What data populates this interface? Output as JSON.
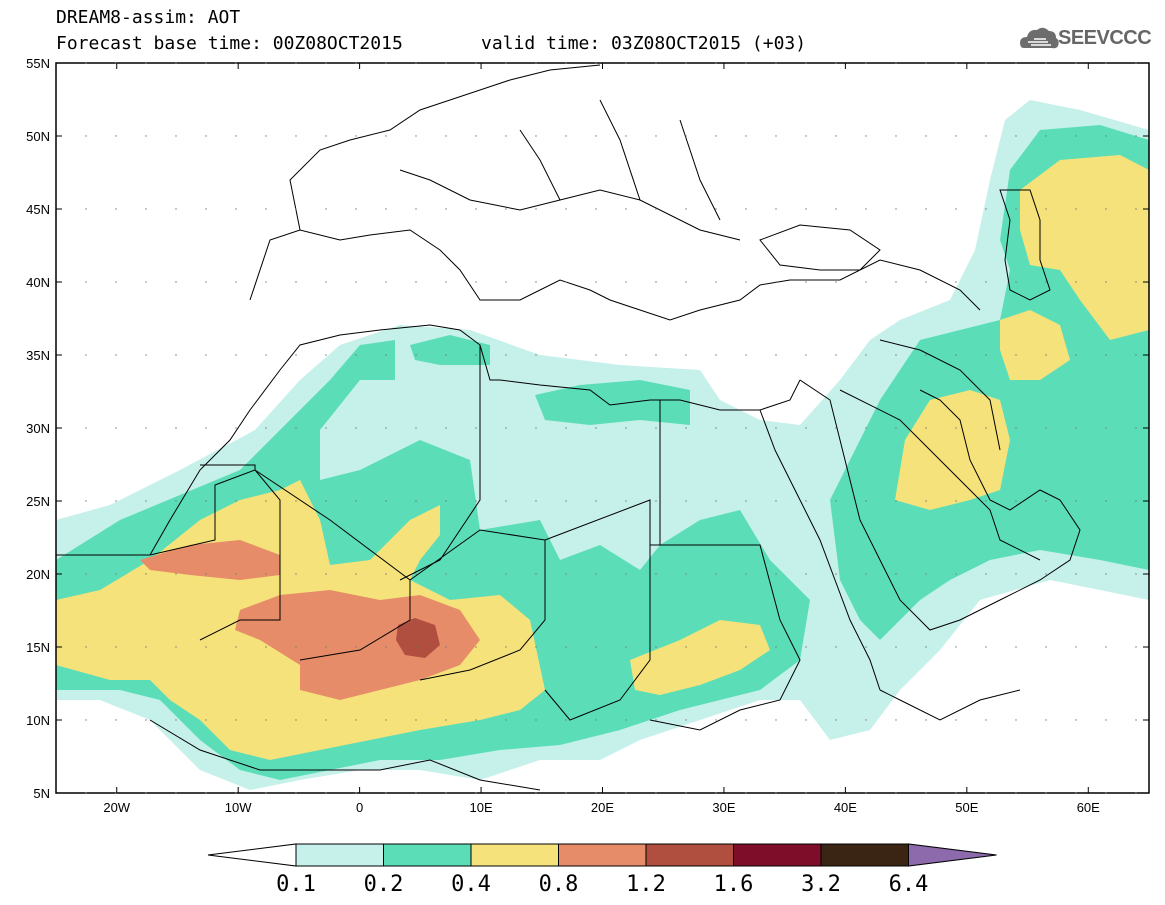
{
  "header": {
    "line1": "DREAM8-assim: AOT",
    "line2": "Forecast base time: 00Z08OCT2015",
    "valid": "valid time: 03Z08OCT2015 (+03)",
    "logo_text": "SEEVCCC"
  },
  "map": {
    "lat_labels": [
      "55N",
      "50N",
      "45N",
      "40N",
      "35N",
      "30N",
      "25N",
      "20N",
      "15N",
      "10N",
      "5N"
    ],
    "lon_labels": [
      "20W",
      "10W",
      "0",
      "10E",
      "20E",
      "30E",
      "40E",
      "50E",
      "60E"
    ],
    "lon_range": [
      -25,
      65
    ],
    "lat_range": [
      5,
      55
    ]
  },
  "colorbar": {
    "labels": [
      "0.1",
      "0.2",
      "0.4",
      "0.8",
      "1.2",
      "1.6",
      "3.2",
      "6.4"
    ],
    "colors": [
      "#c6f0ea",
      "#5bdeb8",
      "#f6e27a",
      "#e68c68",
      "#b04e40",
      "#7e0d2a",
      "#3a2414",
      "#8d6aab"
    ]
  },
  "legend_colors": {
    "lt": "#c6f0ea",
    "gr": "#5bdeb8",
    "ye": "#f6e27a",
    "or": "#e68c68",
    "rd": "#b04e40"
  }
}
